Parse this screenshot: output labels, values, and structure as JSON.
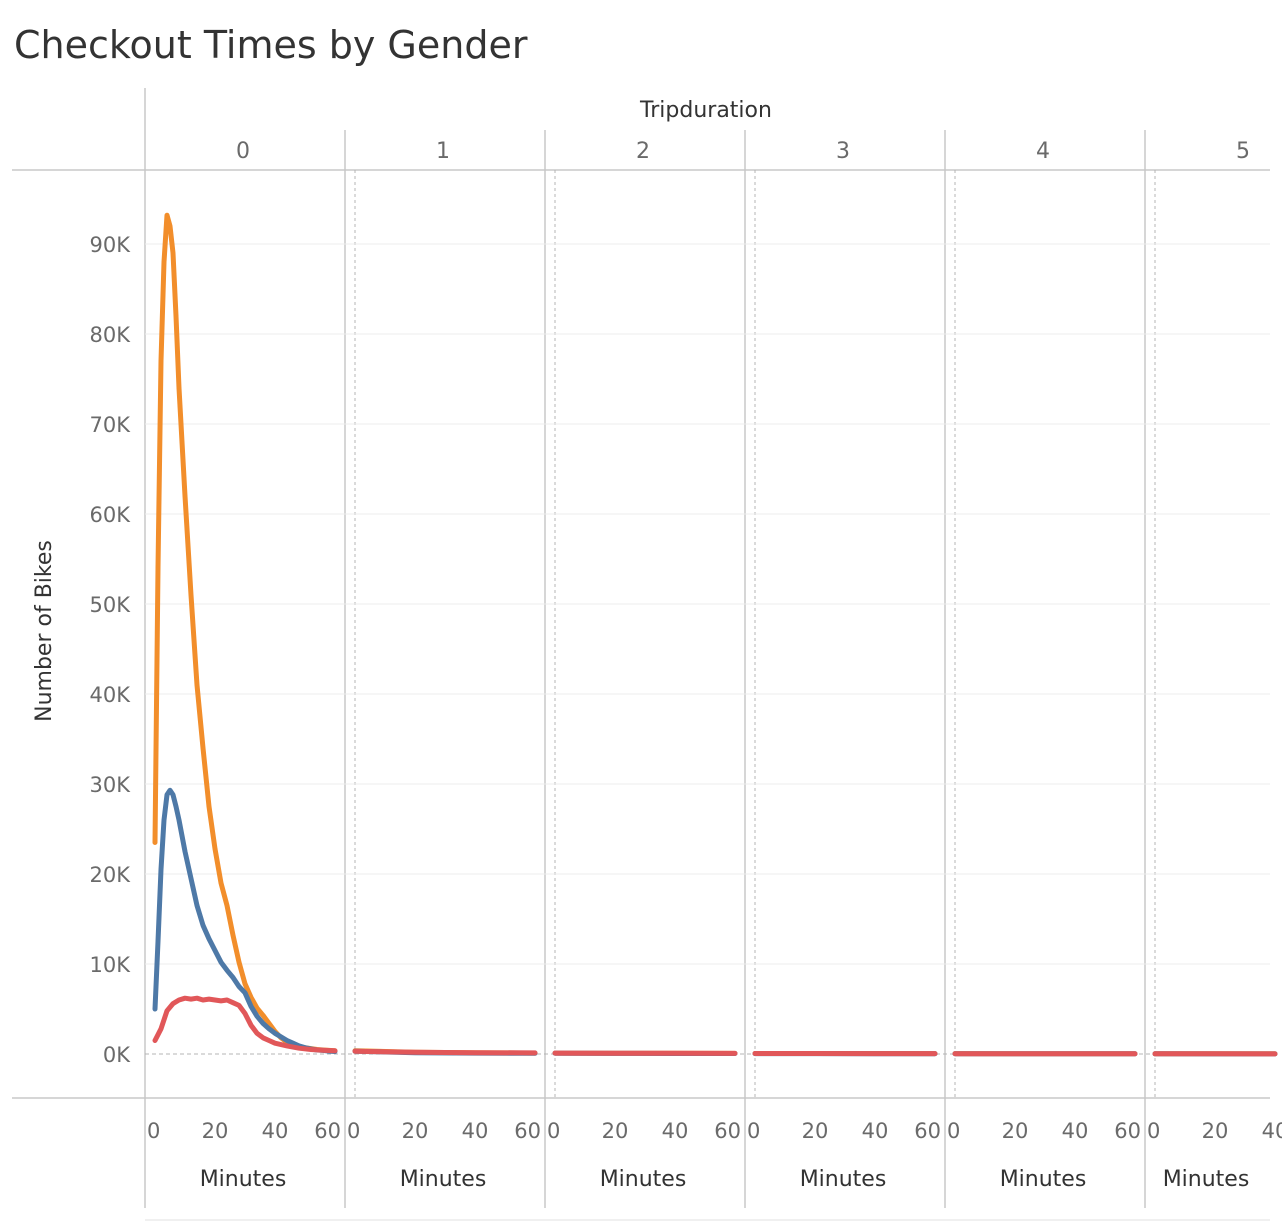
{
  "chart_data": {
    "type": "line",
    "title": "Checkout Times by Gender",
    "column_header": "Tripduration",
    "panes": [
      "0",
      "1",
      "2",
      "3",
      "4",
      "5"
    ],
    "xlabel": "Minutes",
    "ylabel": "Number of Bikes",
    "xlim": [
      0,
      60
    ],
    "ylim": [
      0,
      95000
    ],
    "x_ticks": [
      "0",
      "20",
      "40",
      "60"
    ],
    "y_ticks": [
      {
        "value": 0,
        "label": "0K"
      },
      {
        "value": 10000,
        "label": "10K"
      },
      {
        "value": 20000,
        "label": "20K"
      },
      {
        "value": 30000,
        "label": "30K"
      },
      {
        "value": 40000,
        "label": "40K"
      },
      {
        "value": 50000,
        "label": "50K"
      },
      {
        "value": 60000,
        "label": "60K"
      },
      {
        "value": 70000,
        "label": "70K"
      },
      {
        "value": 80000,
        "label": "80K"
      },
      {
        "value": 90000,
        "label": "90K"
      }
    ],
    "grid": true,
    "series": [
      {
        "color": "#f28e2b",
        "values_by_pane": [
          [
            [
              0,
              23500
            ],
            [
              1,
              54000
            ],
            [
              2,
              77000
            ],
            [
              3,
              88000
            ],
            [
              4,
              93200
            ],
            [
              5,
              92000
            ],
            [
              6,
              89000
            ],
            [
              7,
              82000
            ],
            [
              8,
              74000
            ],
            [
              10,
              62000
            ],
            [
              12,
              51000
            ],
            [
              14,
              41000
            ],
            [
              16,
              34000
            ],
            [
              18,
              27500
            ],
            [
              20,
              22800
            ],
            [
              22,
              19000
            ],
            [
              24,
              16500
            ],
            [
              26,
              13200
            ],
            [
              28,
              10200
            ],
            [
              30,
              7800
            ],
            [
              32,
              6300
            ],
            [
              34,
              5100
            ],
            [
              36,
              4300
            ],
            [
              38,
              3400
            ],
            [
              40,
              2500
            ],
            [
              42,
              1800
            ],
            [
              44,
              1300
            ],
            [
              46,
              1000
            ],
            [
              48,
              800
            ],
            [
              50,
              700
            ],
            [
              52,
              600
            ],
            [
              54,
              500
            ],
            [
              56,
              450
            ],
            [
              58,
              400
            ],
            [
              60,
              350
            ]
          ],
          [
            [
              0,
              350
            ],
            [
              20,
              200
            ],
            [
              40,
              150
            ],
            [
              60,
              100
            ]
          ],
          [
            [
              0,
              100
            ],
            [
              20,
              90
            ],
            [
              40,
              80
            ],
            [
              60,
              70
            ]
          ],
          [
            [
              0,
              60
            ],
            [
              20,
              55
            ],
            [
              40,
              50
            ],
            [
              60,
              45
            ]
          ],
          [
            [
              0,
              40
            ],
            [
              20,
              35
            ],
            [
              40,
              30
            ],
            [
              60,
              28
            ]
          ],
          [
            [
              0,
              25
            ],
            [
              20,
              22
            ],
            [
              40,
              20
            ],
            [
              40,
              20
            ]
          ]
        ]
      },
      {
        "color": "#4e79a7",
        "values_by_pane": [
          [
            [
              0,
              5000
            ],
            [
              1,
              12500
            ],
            [
              2,
              20500
            ],
            [
              3,
              26000
            ],
            [
              4,
              28800
            ],
            [
              5,
              29300
            ],
            [
              6,
              28800
            ],
            [
              7,
              27500
            ],
            [
              8,
              26000
            ],
            [
              10,
              22500
            ],
            [
              12,
              19500
            ],
            [
              14,
              16500
            ],
            [
              16,
              14300
            ],
            [
              18,
              12800
            ],
            [
              20,
              11500
            ],
            [
              22,
              10200
            ],
            [
              24,
              9300
            ],
            [
              26,
              8500
            ],
            [
              28,
              7500
            ],
            [
              30,
              6800
            ],
            [
              32,
              5300
            ],
            [
              34,
              4200
            ],
            [
              36,
              3400
            ],
            [
              38,
              2800
            ],
            [
              40,
              2300
            ],
            [
              42,
              1900
            ],
            [
              44,
              1500
            ],
            [
              46,
              1200
            ],
            [
              48,
              900
            ],
            [
              50,
              700
            ],
            [
              52,
              550
            ],
            [
              54,
              450
            ],
            [
              56,
              400
            ],
            [
              58,
              320
            ],
            [
              60,
              280
            ]
          ],
          [
            [
              0,
              300
            ],
            [
              20,
              150
            ],
            [
              40,
              100
            ],
            [
              60,
              80
            ]
          ],
          [
            [
              0,
              90
            ],
            [
              20,
              70
            ],
            [
              40,
              60
            ],
            [
              60,
              50
            ]
          ],
          [
            [
              0,
              45
            ],
            [
              20,
              40
            ],
            [
              40,
              35
            ],
            [
              60,
              30
            ]
          ],
          [
            [
              0,
              28
            ],
            [
              20,
              25
            ],
            [
              40,
              22
            ],
            [
              60,
              20
            ]
          ],
          [
            [
              0,
              18
            ],
            [
              20,
              16
            ],
            [
              40,
              14
            ],
            [
              40,
              14
            ]
          ]
        ]
      },
      {
        "color": "#e15759",
        "values_by_pane": [
          [
            [
              0,
              1500
            ],
            [
              2,
              2800
            ],
            [
              4,
              4800
            ],
            [
              6,
              5600
            ],
            [
              8,
              6000
            ],
            [
              10,
              6200
            ],
            [
              12,
              6100
            ],
            [
              14,
              6200
            ],
            [
              16,
              6000
            ],
            [
              18,
              6100
            ],
            [
              20,
              6000
            ],
            [
              22,
              5900
            ],
            [
              24,
              6000
            ],
            [
              26,
              5700
            ],
            [
              28,
              5400
            ],
            [
              30,
              4500
            ],
            [
              32,
              3200
            ],
            [
              34,
              2300
            ],
            [
              36,
              1800
            ],
            [
              38,
              1500
            ],
            [
              40,
              1200
            ],
            [
              44,
              900
            ],
            [
              48,
              650
            ],
            [
              52,
              500
            ],
            [
              56,
              420
            ],
            [
              60,
              350
            ]
          ],
          [
            [
              0,
              300
            ],
            [
              20,
              200
            ],
            [
              40,
              150
            ],
            [
              60,
              120
            ]
          ],
          [
            [
              0,
              100
            ],
            [
              20,
              90
            ],
            [
              40,
              80
            ],
            [
              60,
              70
            ]
          ],
          [
            [
              0,
              60
            ],
            [
              20,
              50
            ],
            [
              40,
              45
            ],
            [
              60,
              40
            ]
          ],
          [
            [
              0,
              35
            ],
            [
              20,
              30
            ],
            [
              40,
              28
            ],
            [
              60,
              25
            ]
          ],
          [
            [
              0,
              20
            ],
            [
              20,
              18
            ],
            [
              40,
              15
            ],
            [
              40,
              15
            ]
          ]
        ]
      }
    ]
  }
}
